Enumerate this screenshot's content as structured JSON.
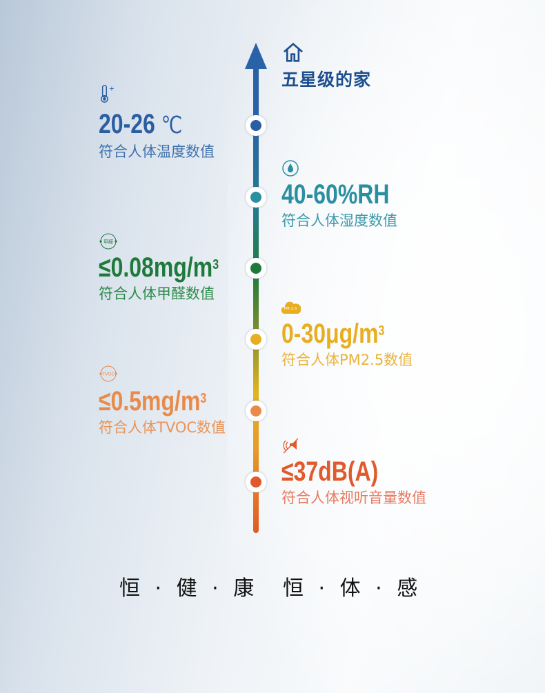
{
  "header": {
    "icon": "house-icon",
    "title": "五星级的家"
  },
  "items": [
    {
      "side": "left",
      "icon": "thermometer-icon",
      "value": "20-26",
      "unit": "℃",
      "sup": "",
      "desc": "符合人体温度数值",
      "color": "#2a5ea3"
    },
    {
      "side": "right",
      "icon": "water-drop-icon",
      "value": "40-60%RH",
      "unit": "",
      "sup": "",
      "desc": "符合人体湿度数值",
      "color": "#2a8fa0"
    },
    {
      "side": "left",
      "icon": "formaldehyde-icon",
      "icon_text": "甲醛",
      "value": "≤0.08mg/m",
      "unit": "",
      "sup": "3",
      "desc": "符合人体甲醛数值",
      "color": "#1e7a3a"
    },
    {
      "side": "right",
      "icon": "pm25-cloud-icon",
      "icon_text": "PM 2.5",
      "value": "0-30μg/m",
      "unit": "",
      "sup": "3",
      "desc": "符合人体PM2.5数值",
      "color": "#e8ae22"
    },
    {
      "side": "left",
      "icon": "tvoc-icon",
      "icon_text": "TVOC",
      "value": "≤0.5mg/m",
      "unit": "",
      "sup": "3",
      "desc": "符合人体TVOC数值",
      "color": "#e88b4a"
    },
    {
      "side": "right",
      "icon": "mute-speaker-icon",
      "value": "≤37dB(A)",
      "unit": "",
      "sup": "",
      "desc": "符合人体视听音量数值",
      "color": "#e05a2b"
    }
  ],
  "footer": {
    "left": "恒·健·康",
    "right": "恒·体·感"
  }
}
